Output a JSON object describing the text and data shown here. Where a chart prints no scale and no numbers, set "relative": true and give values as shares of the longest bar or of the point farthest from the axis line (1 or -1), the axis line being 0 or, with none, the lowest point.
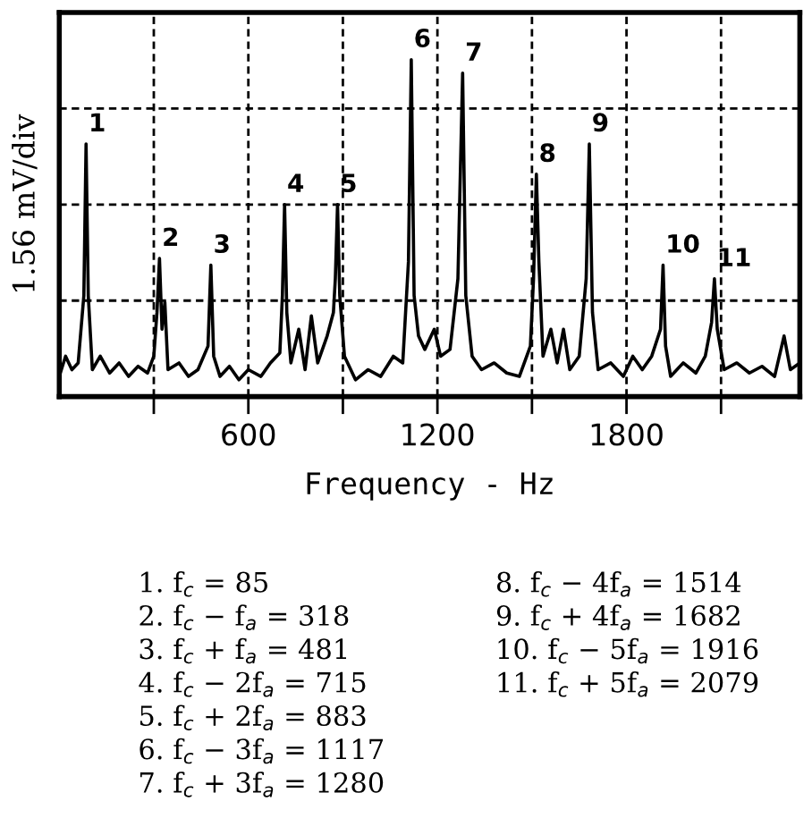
{
  "chart_data": {
    "type": "line",
    "relative": true,
    "color": "#000000",
    "xlabel": "Frequency - Hz",
    "ylabel": "1.56 mV/div",
    "xlim": [
      0,
      2350
    ],
    "xticks": [
      {
        "value": 300,
        "label": null
      },
      600,
      {
        "value": 900,
        "label": null
      },
      1200,
      {
        "value": 1500,
        "label": null
      },
      1800,
      {
        "value": 2100,
        "label": null
      }
    ],
    "grid": true,
    "line_style": "solid",
    "marker": "none",
    "x": [
      0,
      20,
      40,
      60,
      78,
      85,
      92,
      105,
      130,
      160,
      190,
      220,
      250,
      280,
      300,
      310,
      318,
      326,
      335,
      345,
      380,
      410,
      440,
      472,
      481,
      490,
      510,
      540,
      570,
      600,
      640,
      670,
      700,
      708,
      715,
      722,
      735,
      760,
      780,
      800,
      820,
      850,
      870,
      876,
      883,
      890,
      905,
      940,
      980,
      1020,
      1060,
      1090,
      1108,
      1117,
      1126,
      1140,
      1160,
      1190,
      1210,
      1240,
      1265,
      1280,
      1290,
      1310,
      1340,
      1380,
      1420,
      1460,
      1495,
      1505,
      1514,
      1522,
      1535,
      1560,
      1580,
      1600,
      1620,
      1650,
      1672,
      1682,
      1692,
      1710,
      1750,
      1790,
      1820,
      1850,
      1880,
      1908,
      1916,
      1924,
      1940,
      1980,
      2020,
      2050,
      2070,
      2079,
      2088,
      2110,
      2150,
      2190,
      2230,
      2270,
      2300,
      2320,
      2350
    ],
    "values": [
      0.06,
      0.12,
      0.08,
      0.1,
      0.3,
      0.75,
      0.3,
      0.08,
      0.12,
      0.07,
      0.1,
      0.06,
      0.09,
      0.07,
      0.12,
      0.25,
      0.41,
      0.2,
      0.28,
      0.08,
      0.1,
      0.06,
      0.08,
      0.15,
      0.39,
      0.12,
      0.06,
      0.09,
      0.05,
      0.08,
      0.06,
      0.1,
      0.13,
      0.3,
      0.57,
      0.25,
      0.1,
      0.2,
      0.08,
      0.24,
      0.1,
      0.18,
      0.25,
      0.35,
      0.57,
      0.3,
      0.12,
      0.05,
      0.08,
      0.06,
      0.12,
      0.1,
      0.4,
      1.0,
      0.3,
      0.18,
      0.14,
      0.2,
      0.12,
      0.14,
      0.35,
      0.96,
      0.3,
      0.12,
      0.08,
      0.1,
      0.07,
      0.06,
      0.15,
      0.35,
      0.66,
      0.4,
      0.12,
      0.2,
      0.1,
      0.2,
      0.08,
      0.12,
      0.35,
      0.75,
      0.25,
      0.08,
      0.1,
      0.06,
      0.12,
      0.08,
      0.12,
      0.2,
      0.39,
      0.15,
      0.06,
      0.1,
      0.07,
      0.12,
      0.22,
      0.35,
      0.2,
      0.08,
      0.1,
      0.07,
      0.09,
      0.06,
      0.18,
      0.08,
      0.1
    ],
    "annotations": [
      {
        "text": "1",
        "x": 85,
        "y": 0.75
      },
      {
        "text": "2",
        "x": 318,
        "y": 0.41
      },
      {
        "text": "3",
        "x": 481,
        "y": 0.39
      },
      {
        "text": "4",
        "x": 715,
        "y": 0.57
      },
      {
        "text": "5",
        "x": 883,
        "y": 0.57
      },
      {
        "text": "6",
        "x": 1117,
        "y": 1.0
      },
      {
        "text": "7",
        "x": 1280,
        "y": 0.96
      },
      {
        "text": "8",
        "x": 1514,
        "y": 0.66
      },
      {
        "text": "9",
        "x": 1682,
        "y": 0.75
      },
      {
        "text": "10",
        "x": 1916,
        "y": 0.39
      },
      {
        "text": "11",
        "x": 2079,
        "y": 0.35
      },
      "1. f$_{c}$ = 85",
      "2. f$_{c}$ − f$_{a}$ = 318",
      "3. f$_{c}$ + f$_{a}$ = 481",
      "4. f$_{c}$ − 2f$_{a}$ = 715",
      "5. f$_{c}$ + 2f$_{a}$ = 883",
      "6. f$_{c}$ − 3f$_{a}$ = 1117",
      "7. f$_{c}$ + 3f$_{a}$ = 1280",
      "8. f$_{c}$ − 4f$_{a}$ = 1514",
      "9. f$_{c}$ + 4f$_{a}$ = 1682",
      "10. f$_{c}$ − 5f$_{a}$ = 1916",
      "11. f$_{c}$ + 5f$_{a}$ = 2079"
    ]
  }
}
